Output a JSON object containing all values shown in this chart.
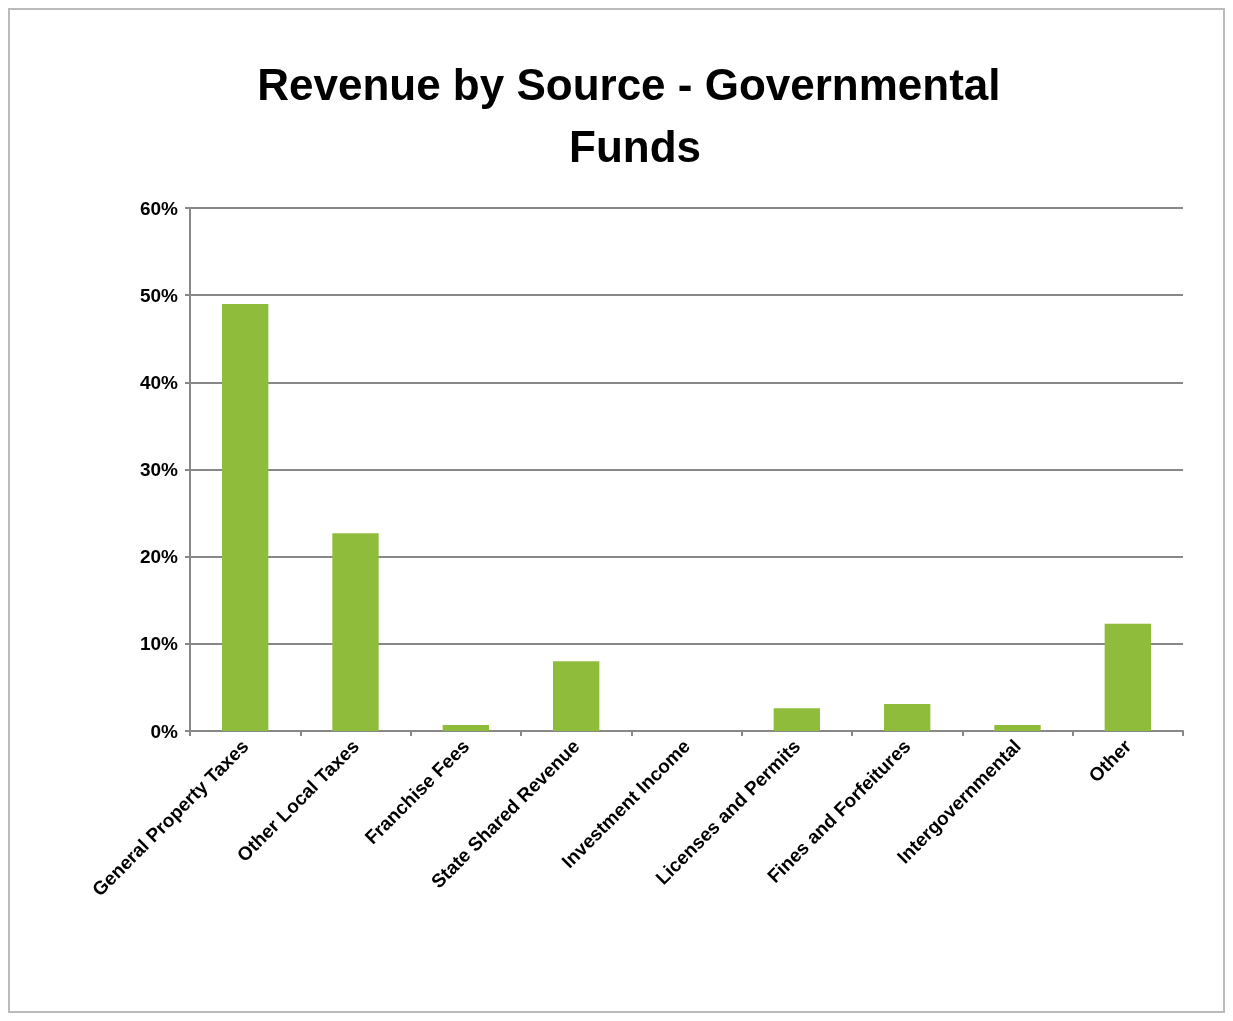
{
  "chart_data": {
    "type": "bar",
    "title": "Revenue by Source - Governmental Funds",
    "categories": [
      "General Property Taxes",
      "Other Local Taxes",
      "Franchise Fees",
      "State Shared Revenue",
      "Investment Income",
      "Licenses and Permits",
      "Fines and Forfeitures",
      "Intergovernmental",
      "Other"
    ],
    "values": [
      49,
      22.7,
      0.7,
      8,
      0,
      2.6,
      3.1,
      0.7,
      12.3
    ],
    "color": "#8fbc3a",
    "ylim": [
      0,
      60
    ],
    "yticks": [
      {
        "value": 0,
        "label": "0%"
      },
      {
        "value": 10,
        "label": "10%"
      },
      {
        "value": 20,
        "label": "20%"
      },
      {
        "value": 30,
        "label": "30%"
      },
      {
        "value": 40,
        "label": "40%"
      },
      {
        "value": 50,
        "label": "50%"
      },
      {
        "value": 60,
        "label": "60%"
      }
    ],
    "grid": "y"
  }
}
